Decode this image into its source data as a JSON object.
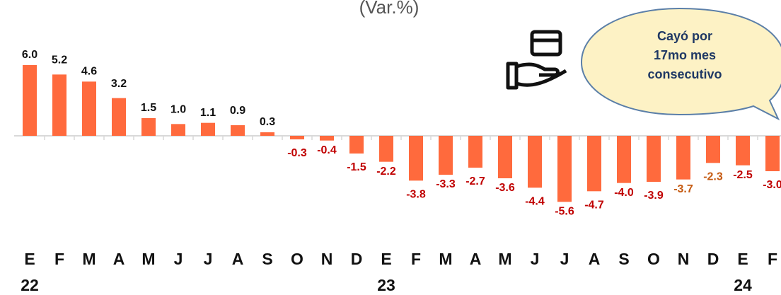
{
  "chart_data": {
    "type": "bar",
    "title": "(Var.%)",
    "annotation": [
      "Cayó por",
      "17mo mes",
      "consecutivo"
    ],
    "categories": [
      "E",
      "F",
      "M",
      "A",
      "M",
      "J",
      "J",
      "A",
      "S",
      "O",
      "N",
      "D",
      "E",
      "F",
      "M",
      "A",
      "M",
      "J",
      "J",
      "A",
      "S",
      "O",
      "N",
      "D",
      "E",
      "F"
    ],
    "years": [
      "22",
      null,
      null,
      null,
      null,
      null,
      null,
      null,
      null,
      null,
      null,
      null,
      "23",
      null,
      null,
      null,
      null,
      null,
      null,
      null,
      null,
      null,
      null,
      null,
      "24",
      null
    ],
    "values": [
      6.0,
      5.2,
      4.6,
      3.2,
      1.5,
      1.0,
      1.1,
      0.9,
      0.3,
      -0.3,
      -0.4,
      -1.5,
      -2.2,
      -3.8,
      -3.3,
      -2.7,
      -3.6,
      -4.4,
      -5.6,
      -4.7,
      -4.0,
      -3.9,
      -3.7,
      -2.3,
      -2.5,
      -3.0
    ],
    "value_labels": [
      "6.0",
      "5.2",
      "4.6",
      "3.2",
      "1.5",
      "1.0",
      "1.1",
      "0.9",
      "0.3",
      "-0.3",
      "-0.4",
      "-1.5",
      "-2.2",
      "-3.8",
      "-3.3",
      "-2.7",
      "-3.6",
      "-4.4",
      "-5.6",
      "-4.7",
      "-4.0",
      "-3.9",
      "-3.7",
      "-2.3",
      "-2.5",
      "-3.0"
    ],
    "value_label_colors": [
      "#111",
      "#111",
      "#111",
      "#111",
      "#111",
      "#111",
      "#111",
      "#111",
      "#111",
      "#c00000",
      "#c00000",
      "#c00000",
      "#c00000",
      "#c00000",
      "#c00000",
      "#c00000",
      "#c00000",
      "#c00000",
      "#c00000",
      "#c00000",
      "#c00000",
      "#c00000",
      "#c55a11",
      "#c55a11",
      "#c00000",
      "#c00000"
    ],
    "color": "#ff6a3d",
    "ylim": [
      -6,
      6
    ]
  }
}
